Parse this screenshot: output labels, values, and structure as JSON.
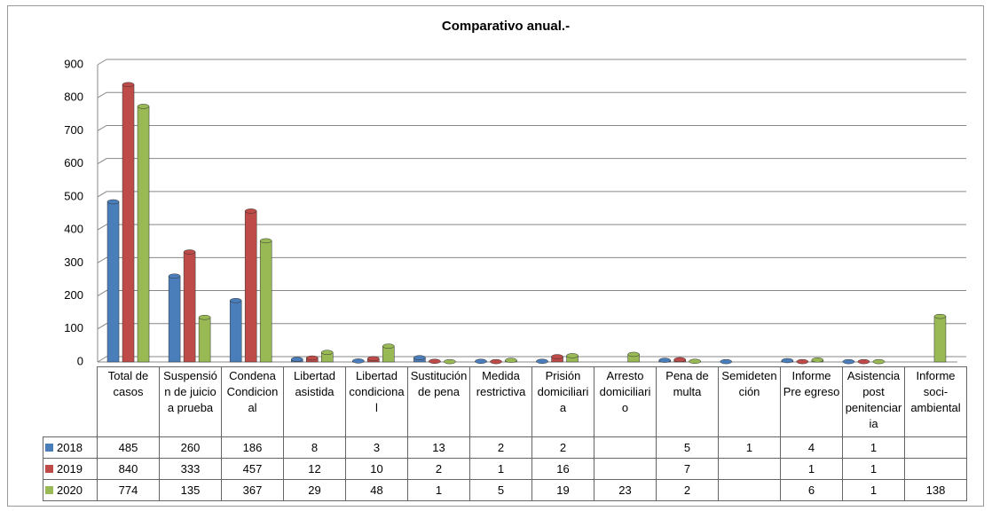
{
  "chart_data": {
    "type": "bar",
    "title": "Comparativo anual.-",
    "categories": [
      "Total de casos",
      "Suspensión de juicio a prueba",
      "Condena Condicional",
      "Libertad asistida",
      "Libertad condicional",
      "Sustitución de pena",
      "Medida restrictiva",
      "Prisión domiciliaria",
      "Arresto domiciliario",
      "Pena de multa",
      "Semidetención",
      "Informe Pre egreso",
      "Asistencia post penitenciaria",
      "Informe soci-ambiental"
    ],
    "series": [
      {
        "name": "2018",
        "color": "#4a7ebb",
        "values": [
          485,
          260,
          186,
          8,
          3,
          13,
          2,
          2,
          null,
          5,
          1,
          4,
          1,
          null
        ]
      },
      {
        "name": "2019",
        "color": "#be4b48",
        "values": [
          840,
          333,
          457,
          12,
          10,
          2,
          1,
          16,
          null,
          7,
          null,
          1,
          1,
          null
        ]
      },
      {
        "name": "2020",
        "color": "#98b954",
        "values": [
          774,
          135,
          367,
          29,
          48,
          1,
          5,
          19,
          23,
          2,
          null,
          6,
          1,
          138
        ]
      }
    ],
    "ylim": [
      0,
      900
    ],
    "yticks": [
      0,
      100,
      200,
      300,
      400,
      500,
      600,
      700,
      800,
      900
    ],
    "grid": true
  }
}
